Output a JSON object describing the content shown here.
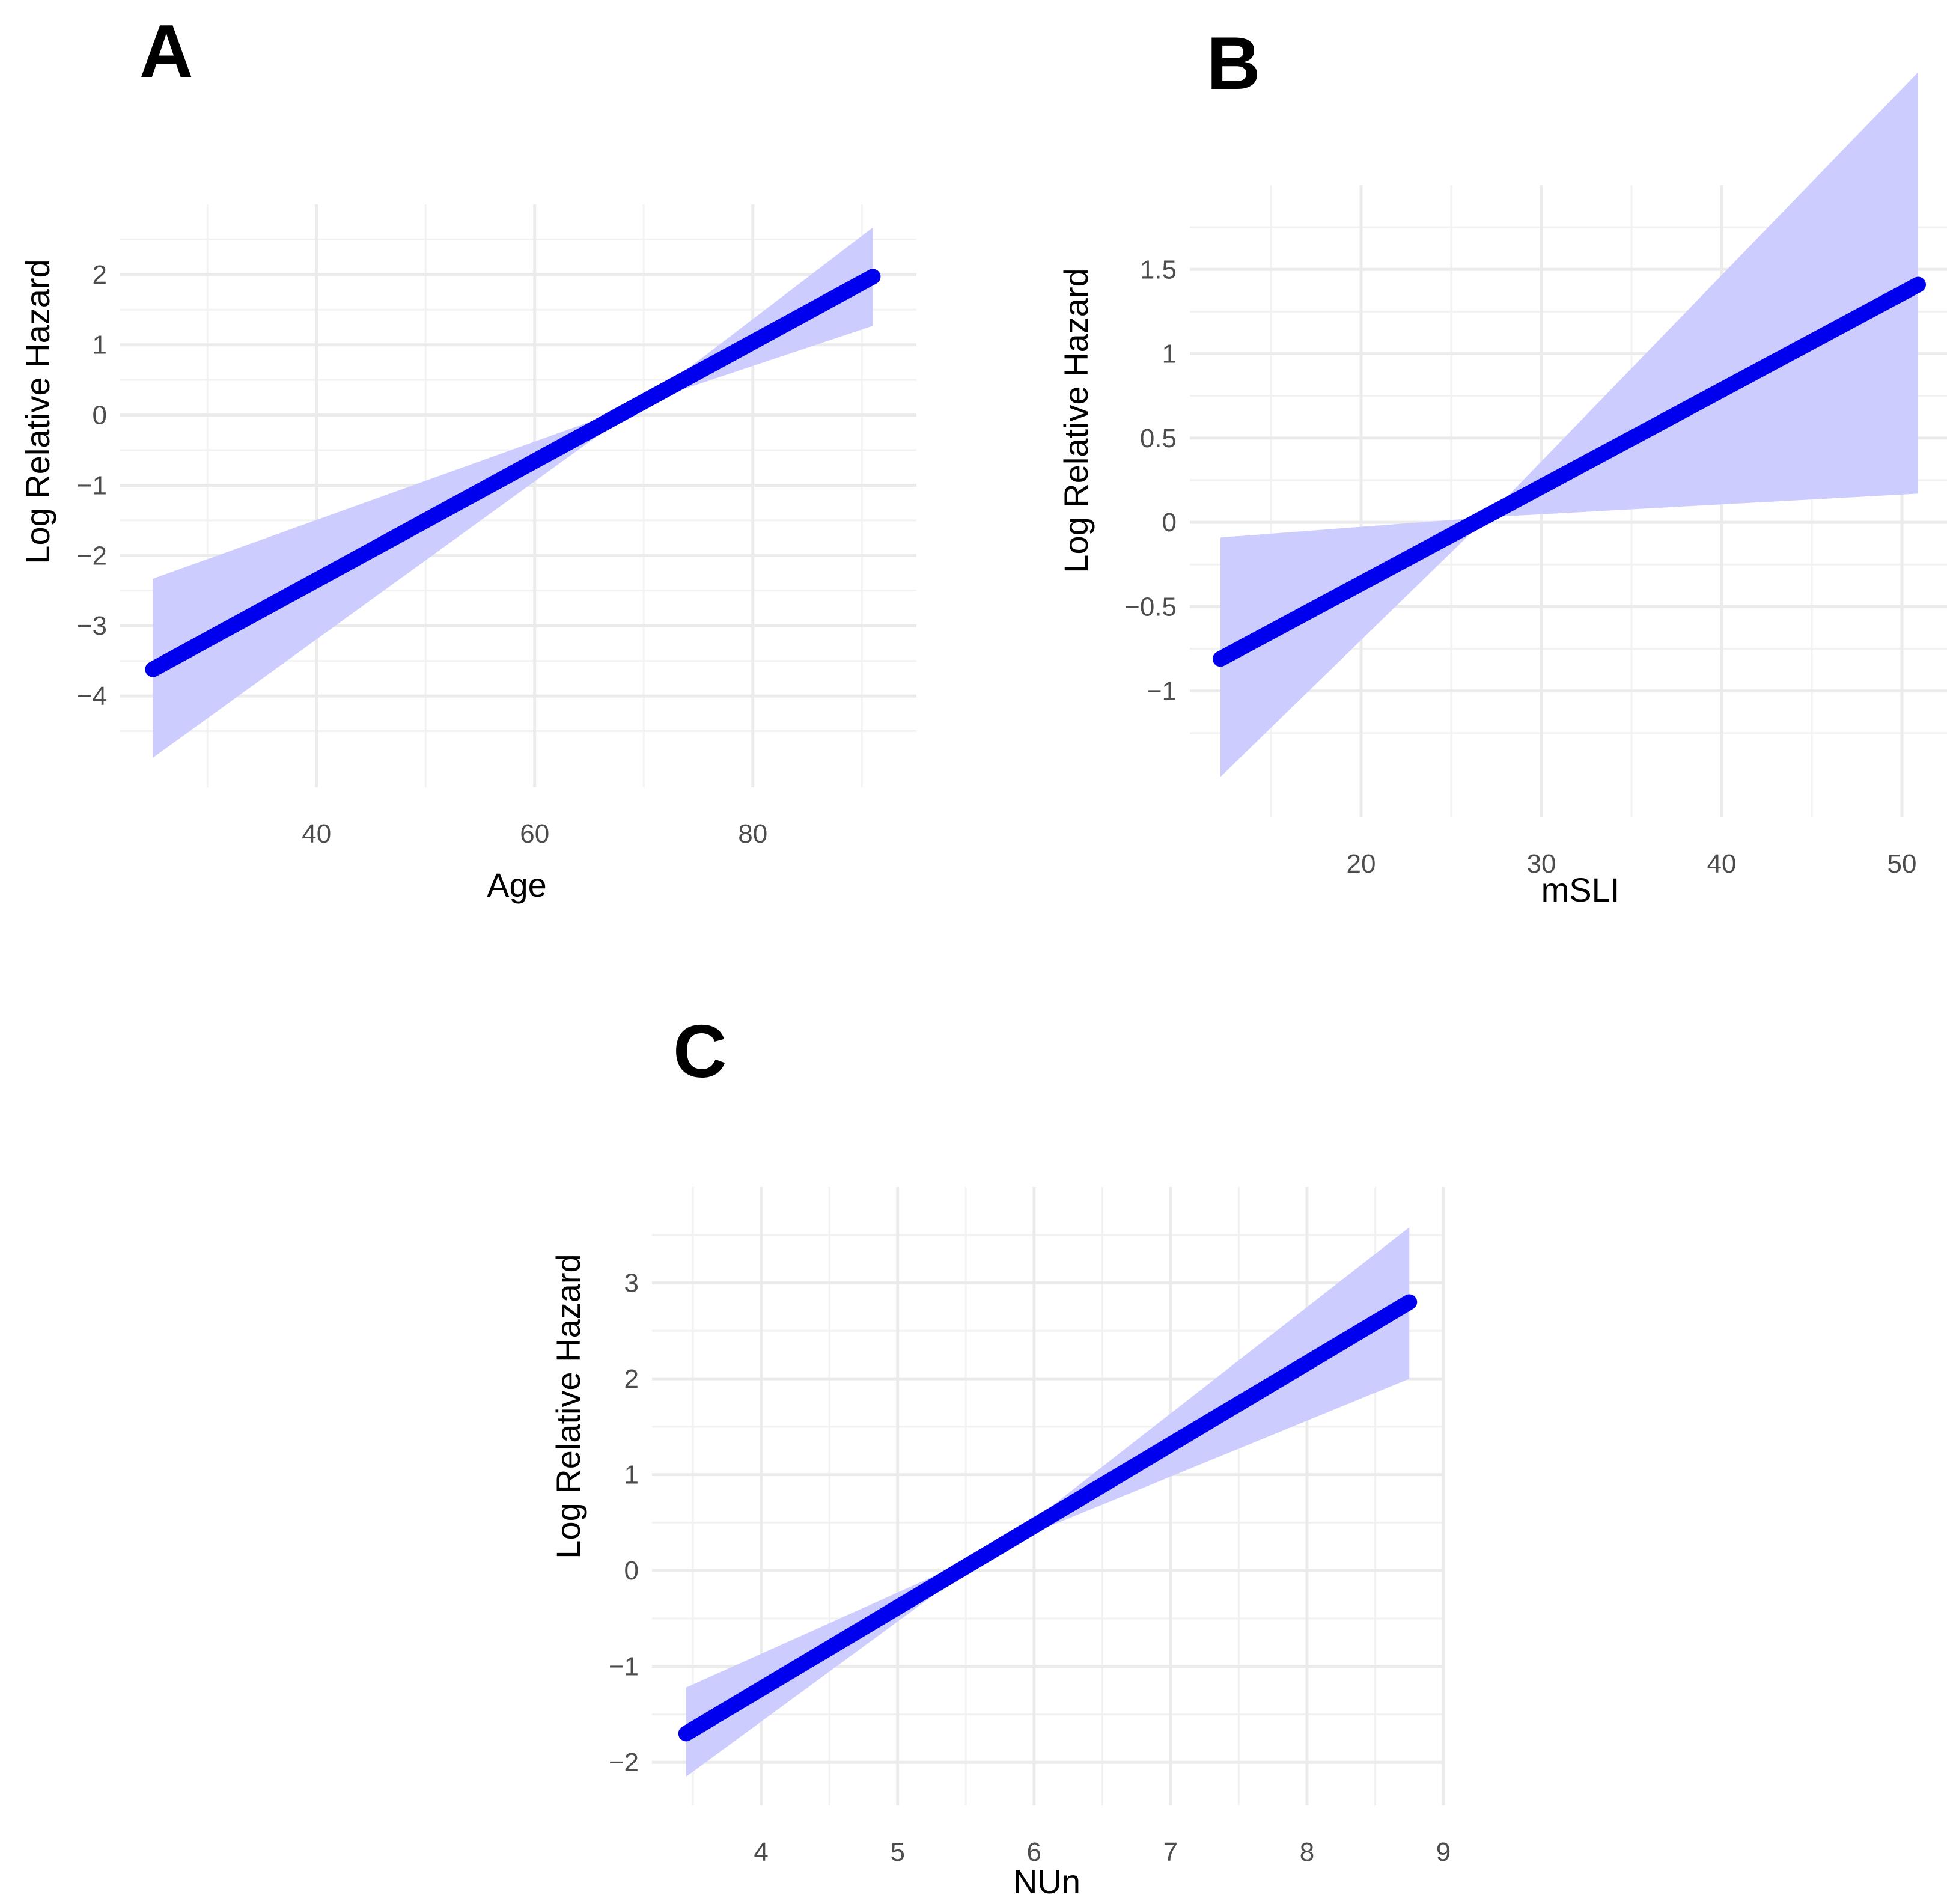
{
  "colors": {
    "line": "#0000ee",
    "band": "#ccccff",
    "grid_major": "#ebebeb",
    "grid_minor": "#f2f2f2",
    "tick_text": "#4d4d4d"
  },
  "chart_data": [
    {
      "type": "line",
      "panel_label": "A",
      "xlabel": "Age",
      "ylabel": "Log Relative Hazard",
      "x_ticks": [
        40,
        60,
        80
      ],
      "x_tick_labels": [
        "40",
        "60",
        "80"
      ],
      "y_ticks": [
        -4,
        -3,
        -2,
        -1,
        0,
        1,
        2
      ],
      "y_tick_labels": [
        "−4",
        "−3",
        "−2",
        "−1",
        "0",
        "1",
        "2"
      ],
      "xlim": [
        22,
        95
      ],
      "ylim": [
        -5.3,
        3.0
      ],
      "grid": true,
      "series": [
        {
          "name": "Log Relative Hazard",
          "x": [
            25,
            91
          ],
          "y": [
            -3.62,
            1.97
          ],
          "band_lower": [
            -4.88,
            1.27
          ],
          "band_upper": [
            -2.33,
            2.67
          ],
          "pivot_x": 70,
          "pivot_y": 0.18
        }
      ]
    },
    {
      "type": "line",
      "panel_label": "B",
      "xlabel": "mSLI",
      "ylabel": "Log Relative Hazard",
      "x_ticks": [
        20,
        30,
        40,
        50
      ],
      "x_tick_labels": [
        "20",
        "30",
        "40",
        "50"
      ],
      "y_ticks": [
        -1,
        -0.5,
        0,
        0.5,
        1,
        1.5
      ],
      "y_tick_labels": [
        "−1",
        "−0.5",
        "0",
        "0.5",
        "1",
        "1.5"
      ],
      "xlim": [
        10.5,
        52.5
      ],
      "ylim": [
        -1.75,
        2.0
      ],
      "grid": true,
      "series": [
        {
          "name": "Log Relative Hazard",
          "x": [
            12.2,
            50.9
          ],
          "y": [
            -0.81,
            1.41
          ],
          "band_lower": [
            -1.51,
            0.17
          ],
          "band_upper": [
            -0.09,
            2.67
          ],
          "pivot_x": 27,
          "pivot_y": 0.03
        }
      ]
    },
    {
      "type": "line",
      "panel_label": "C",
      "xlabel": "NUn",
      "ylabel": "Log Relative Hazard",
      "x_ticks": [
        4,
        5,
        6,
        7,
        8,
        9
      ],
      "x_tick_labels": [
        "4",
        "5",
        "6",
        "7",
        "8",
        "9"
      ],
      "y_ticks": [
        -2,
        -1,
        0,
        1,
        2,
        3
      ],
      "y_tick_labels": [
        "−2",
        "−1",
        "0",
        "1",
        "2",
        "3"
      ],
      "xlim": [
        3.2,
        9.0
      ],
      "ylim": [
        -2.45,
        4.0
      ],
      "grid": true,
      "series": [
        {
          "name": "Log Relative Hazard",
          "x": [
            3.45,
            8.75
          ],
          "y": [
            -1.7,
            2.8
          ],
          "band_lower": [
            -2.15,
            2.0
          ],
          "band_upper": [
            -1.22,
            3.58
          ],
          "pivot_x": 5.75,
          "pivot_y": 0.25
        }
      ]
    }
  ]
}
